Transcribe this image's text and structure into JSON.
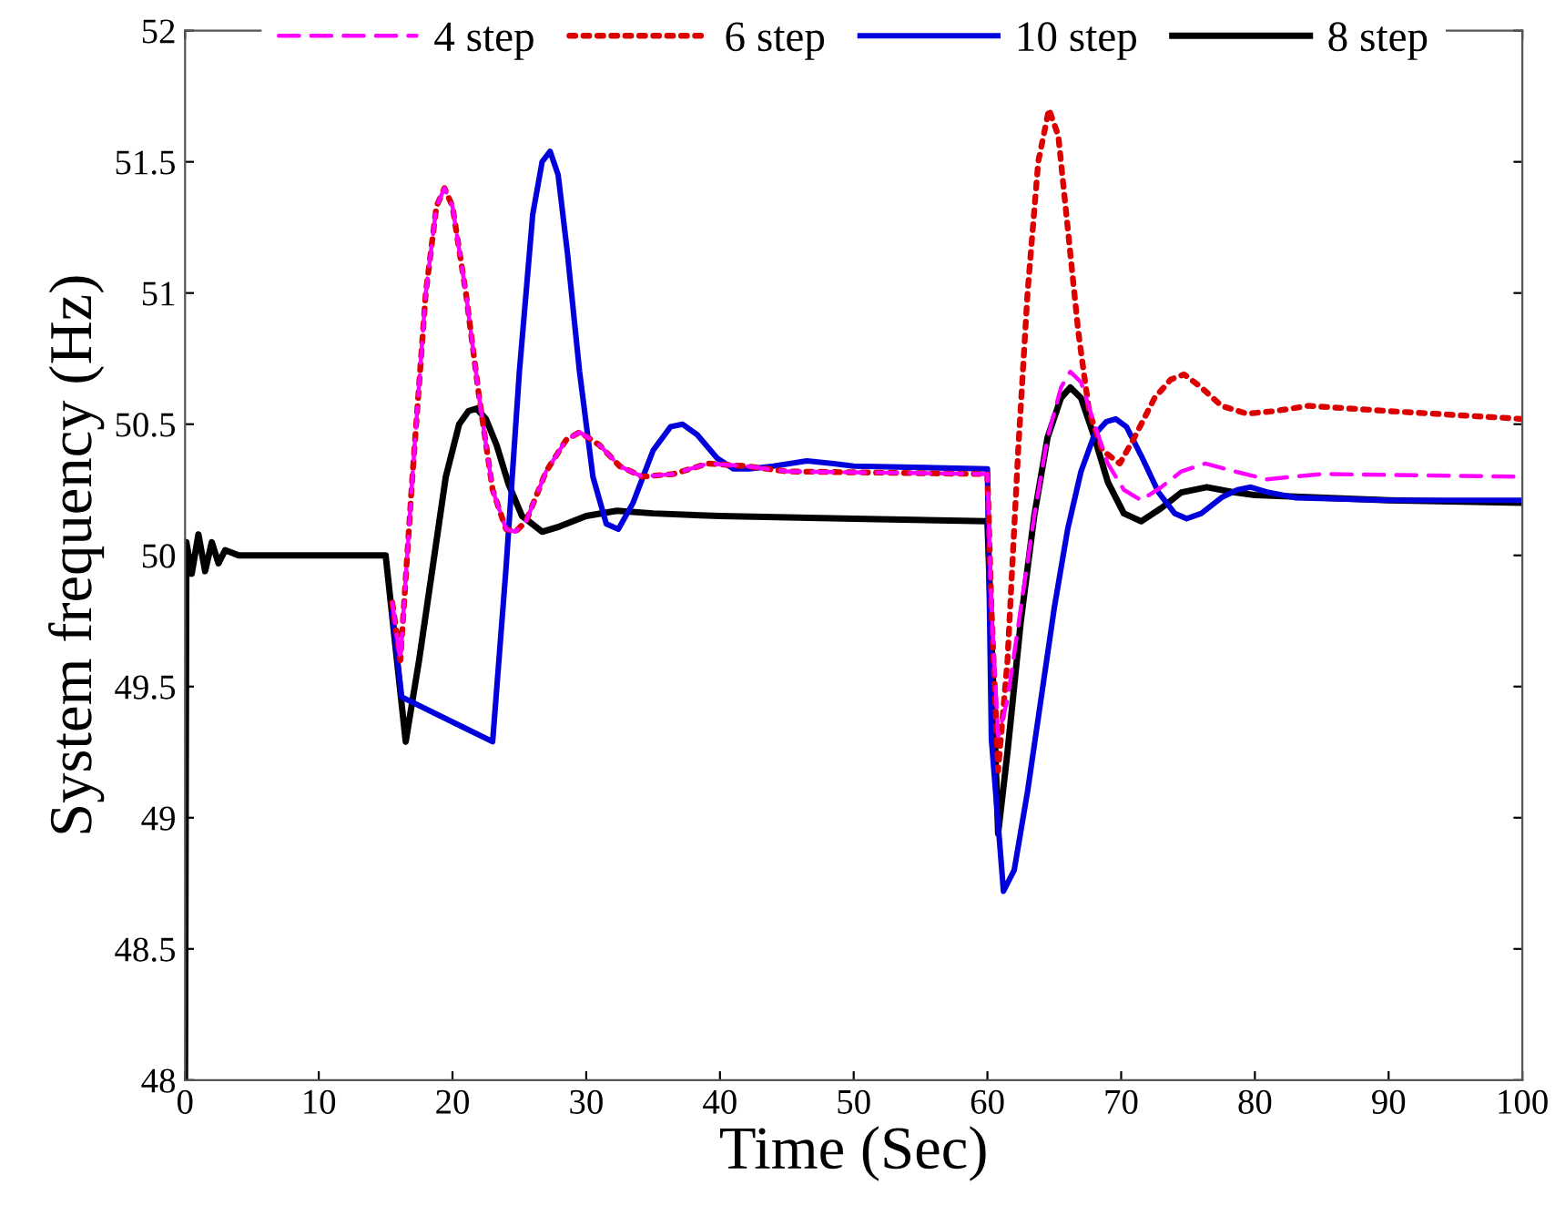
{
  "chart_data": {
    "type": "line",
    "xlabel": "Time (Sec)",
    "ylabel": "System frequency (Hz)",
    "xlim": [
      0,
      100
    ],
    "ylim": [
      48,
      52
    ],
    "xticks": [
      0,
      10,
      20,
      30,
      40,
      50,
      60,
      70,
      80,
      90,
      100
    ],
    "yticks": [
      48,
      48.5,
      49,
      49.5,
      50,
      50.5,
      51,
      51.5,
      52
    ],
    "grid": false,
    "legend": "top",
    "marker": "none",
    "series": [
      {
        "name": "4 step",
        "color": "#ff00ff",
        "line_style": "dashed",
        "x": [
          15.5,
          16.1,
          17,
          18,
          18.8,
          19.4,
          20,
          21,
          22,
          23,
          24,
          24.7,
          25.5,
          27,
          28.5,
          29.5,
          31,
          32.5,
          34.2,
          36.5,
          39.1,
          42,
          45,
          60,
          60.3,
          60.8,
          61.5,
          62.5,
          63.5,
          64.5,
          65.5,
          66.2,
          67,
          68,
          69,
          70.2,
          71.5,
          73,
          74.5,
          76.3,
          78.5,
          80.9,
          85,
          100
        ],
        "values": [
          49.82,
          49.6,
          50.3,
          51.0,
          51.33,
          51.4,
          51.33,
          51.0,
          50.6,
          50.25,
          50.1,
          50.09,
          50.13,
          50.32,
          50.44,
          50.47,
          50.42,
          50.34,
          50.3,
          50.31,
          50.35,
          50.34,
          50.32,
          50.31,
          49.8,
          49.31,
          49.45,
          49.8,
          50.15,
          50.45,
          50.64,
          50.7,
          50.66,
          50.5,
          50.35,
          50.25,
          50.21,
          50.26,
          50.32,
          50.35,
          50.32,
          50.29,
          50.31,
          50.3
        ]
      },
      {
        "name": "6 step",
        "color": "#dd0000",
        "line_style": "dotted",
        "x": [
          15.5,
          16.1,
          17,
          18,
          18.8,
          19.4,
          20,
          21,
          22,
          23,
          24,
          24.7,
          25.5,
          27,
          28.5,
          29.5,
          31,
          32.5,
          34.2,
          36.5,
          39.1,
          42,
          45,
          60,
          60.3,
          60.8,
          61.5,
          62.3,
          63,
          63.8,
          64.6,
          65.3,
          66,
          66.8,
          67.6,
          68.6,
          69.9,
          71,
          72.5,
          73.7,
          74.7,
          76,
          77.5,
          79.4,
          81.5,
          84,
          90,
          100
        ],
        "values": [
          49.82,
          49.6,
          50.3,
          51.0,
          51.33,
          51.4,
          51.33,
          51.0,
          50.6,
          50.25,
          50.1,
          50.09,
          50.13,
          50.32,
          50.44,
          50.47,
          50.42,
          50.34,
          50.3,
          50.31,
          50.35,
          50.34,
          50.32,
          50.31,
          49.8,
          49.18,
          49.6,
          50.4,
          51.0,
          51.5,
          51.7,
          51.6,
          51.25,
          50.85,
          50.55,
          50.4,
          50.35,
          50.45,
          50.6,
          50.67,
          50.69,
          50.64,
          50.57,
          50.54,
          50.55,
          50.57,
          50.55,
          50.52
        ]
      },
      {
        "name": "10 step",
        "color": "#0000dd",
        "line_style": "solid",
        "x": [
          15.5,
          16.2,
          23,
          24,
          25,
          26,
          26.7,
          27.3,
          27.9,
          28.6,
          29.5,
          30.5,
          31.5,
          32.4,
          33.5,
          35,
          36.3,
          37.2,
          38.3,
          39.8,
          41,
          42.2,
          44,
          46.5,
          48.5,
          50,
          60,
          60.3,
          61.2,
          62,
          63,
          64,
          65,
          66,
          67,
          68,
          68.9,
          69.6,
          70.4,
          71.5,
          72.8,
          74,
          74.9,
          76,
          77.5,
          78.7,
          79.7,
          81,
          83,
          90,
          100
        ],
        "values": [
          49.78,
          49.46,
          49.29,
          49.95,
          50.7,
          51.3,
          51.5,
          51.54,
          51.45,
          51.15,
          50.7,
          50.3,
          50.12,
          50.1,
          50.2,
          50.4,
          50.49,
          50.5,
          50.46,
          50.37,
          50.33,
          50.33,
          50.34,
          50.36,
          50.35,
          50.34,
          50.33,
          49.3,
          48.72,
          48.8,
          49.1,
          49.45,
          49.8,
          50.1,
          50.32,
          50.46,
          50.51,
          50.52,
          50.49,
          50.38,
          50.24,
          50.16,
          50.14,
          50.16,
          50.22,
          50.25,
          50.26,
          50.24,
          50.22,
          50.21,
          50.21
        ]
      },
      {
        "name": "8 step",
        "color": "#000000",
        "line_style": "solid",
        "x": [
          0,
          0.1,
          0.5,
          1,
          1.5,
          2,
          2.5,
          3,
          4,
          15,
          16.5,
          17.5,
          18.5,
          19.5,
          20.5,
          21.2,
          21.8,
          22.5,
          23.3,
          24.2,
          25.2,
          26.7,
          28,
          30,
          32.3,
          35,
          40,
          50,
          60,
          60.3,
          60.8,
          61.5,
          62.5,
          63.5,
          64.5,
          65.5,
          66.2,
          67,
          68,
          69,
          70.2,
          71.5,
          73,
          74.5,
          76.4,
          78.5,
          80,
          90,
          100
        ],
        "values": [
          48,
          50.05,
          49.93,
          50.08,
          49.94,
          50.05,
          49.97,
          50.02,
          50,
          50,
          49.29,
          49.6,
          49.95,
          50.3,
          50.5,
          50.55,
          50.56,
          50.52,
          50.42,
          50.27,
          50.15,
          50.09,
          50.11,
          50.15,
          50.17,
          50.16,
          50.15,
          50.14,
          50.13,
          49.7,
          48.94,
          49.25,
          49.75,
          50.15,
          50.45,
          50.6,
          50.64,
          50.6,
          50.45,
          50.28,
          50.16,
          50.13,
          50.18,
          50.24,
          50.26,
          50.24,
          50.23,
          50.21,
          50.2
        ]
      }
    ]
  }
}
